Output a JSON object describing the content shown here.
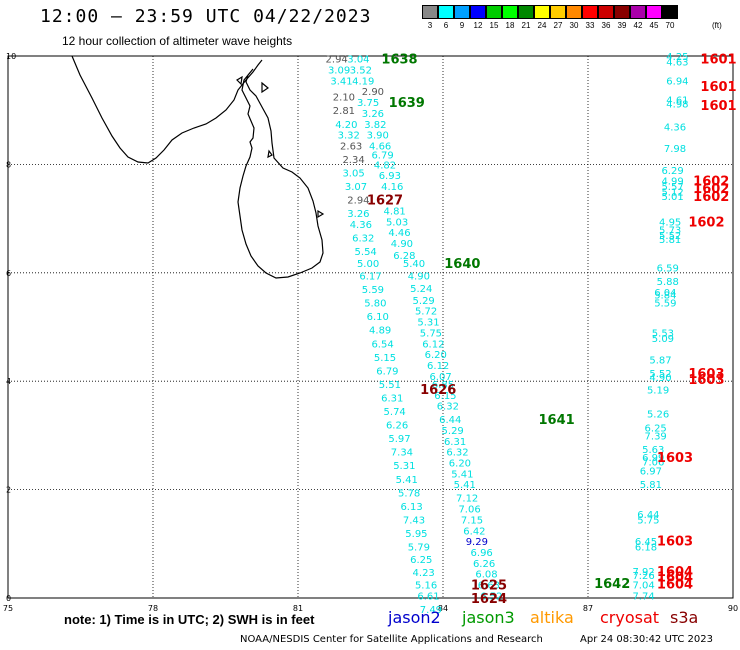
{
  "header": {
    "title": "12:00 – 23:59 UTC 04/22/2023",
    "subtitle": "12 hour collection of altimeter wave heights",
    "legend_unit": "(ft)",
    "legend": [
      {
        "label": "3",
        "color": "#888888"
      },
      {
        "label": "6",
        "color": "#00ffff"
      },
      {
        "label": "9",
        "color": "#00a0ff"
      },
      {
        "label": "12",
        "color": "#0000ff"
      },
      {
        "label": "15",
        "color": "#00cc00"
      },
      {
        "label": "18",
        "color": "#00ff00"
      },
      {
        "label": "21",
        "color": "#008800"
      },
      {
        "label": "24",
        "color": "#ffff00"
      },
      {
        "label": "27",
        "color": "#ffcc00"
      },
      {
        "label": "30",
        "color": "#ff8800"
      },
      {
        "label": "33",
        "color": "#ff0000"
      },
      {
        "label": "36",
        "color": "#cc0000"
      },
      {
        "label": "39",
        "color": "#880000"
      },
      {
        "label": "42",
        "color": "#aa00aa"
      },
      {
        "label": "45",
        "color": "#ff00ff"
      },
      {
        "label": "70",
        "color": "#000000"
      }
    ]
  },
  "map": {
    "lon_ticks": [
      "75",
      "78",
      "81",
      "84",
      "87",
      "90"
    ],
    "lat_ticks": [
      "0",
      "2",
      "4",
      "6",
      "8",
      "10"
    ],
    "colors": {
      "gray": "#555555",
      "cyan": "#00e0e0",
      "blue": "#0000cc",
      "green": "#007700",
      "darkred": "#880000",
      "red": "#ee0000"
    },
    "time_labels": [
      {
        "text": "1638",
        "lon": 83.1,
        "lat": 9.95,
        "c": "green"
      },
      {
        "text": "1639",
        "lon": 83.25,
        "lat": 9.15,
        "c": "green"
      },
      {
        "text": "1627",
        "lon": 82.8,
        "lat": 7.35,
        "c": "darkred"
      },
      {
        "text": "1640",
        "lon": 84.4,
        "lat": 6.18,
        "c": "green"
      },
      {
        "text": "1626",
        "lon": 83.9,
        "lat": 3.86,
        "c": "darkred"
      },
      {
        "text": "1641",
        "lon": 86.35,
        "lat": 3.3,
        "c": "green"
      },
      {
        "text": "1642",
        "lon": 87.5,
        "lat": 0.28,
        "c": "green"
      },
      {
        "text": "1625",
        "lon": 84.95,
        "lat": 0.25,
        "c": "darkred"
      },
      {
        "text": "1624",
        "lon": 84.95,
        "lat": 0.0,
        "c": "darkred"
      },
      {
        "text": "1601",
        "lon": 89.7,
        "lat": 9.95,
        "c": "red"
      },
      {
        "text": "1601",
        "lon": 89.7,
        "lat": 9.45,
        "c": "red"
      },
      {
        "text": "1601",
        "lon": 89.7,
        "lat": 9.1,
        "c": "red"
      },
      {
        "text": "1602",
        "lon": 89.55,
        "lat": 7.7,
        "c": "red"
      },
      {
        "text": "1602",
        "lon": 89.55,
        "lat": 7.56,
        "c": "red"
      },
      {
        "text": "1602",
        "lon": 89.55,
        "lat": 7.42,
        "c": "red"
      },
      {
        "text": "1602",
        "lon": 89.45,
        "lat": 6.95,
        "c": "red"
      },
      {
        "text": "1603",
        "lon": 89.45,
        "lat": 4.15,
        "c": "red"
      },
      {
        "text": "1603",
        "lon": 89.45,
        "lat": 4.04,
        "c": "red"
      },
      {
        "text": "1603",
        "lon": 88.8,
        "lat": 2.6,
        "c": "red"
      },
      {
        "text": "1603",
        "lon": 88.8,
        "lat": 1.06,
        "c": "red"
      },
      {
        "text": "1604",
        "lon": 88.8,
        "lat": 0.5,
        "c": "red"
      },
      {
        "text": "1604",
        "lon": 88.8,
        "lat": 0.4,
        "c": "red"
      },
      {
        "text": "1604",
        "lon": 88.8,
        "lat": 0.27,
        "c": "red"
      }
    ],
    "heights": [
      {
        "text": "2.94",
        "lon": 81.8,
        "lat": 9.95,
        "c": "gray"
      },
      {
        "text": "3.04",
        "lon": 82.25,
        "lat": 9.95,
        "c": "cyan"
      },
      {
        "text": "3.09",
        "lon": 81.85,
        "lat": 9.75,
        "c": "cyan"
      },
      {
        "text": "3.52",
        "lon": 82.3,
        "lat": 9.75,
        "c": "cyan"
      },
      {
        "text": "3.41",
        "lon": 81.9,
        "lat": 9.55,
        "c": "cyan"
      },
      {
        "text": "4.19",
        "lon": 82.35,
        "lat": 9.55,
        "c": "cyan"
      },
      {
        "text": "2.90",
        "lon": 82.55,
        "lat": 9.35,
        "c": "gray"
      },
      {
        "text": "2.10",
        "lon": 81.95,
        "lat": 9.25,
        "c": "gray"
      },
      {
        "text": "3.75",
        "lon": 82.45,
        "lat": 9.15,
        "c": "cyan"
      },
      {
        "text": "2.81",
        "lon": 81.95,
        "lat": 9.0,
        "c": "gray"
      },
      {
        "text": "3.26",
        "lon": 82.55,
        "lat": 8.95,
        "c": "cyan"
      },
      {
        "text": "4.20",
        "lon": 82.0,
        "lat": 8.75,
        "c": "cyan"
      },
      {
        "text": "3.82",
        "lon": 82.6,
        "lat": 8.75,
        "c": "cyan"
      },
      {
        "text": "3.32",
        "lon": 82.05,
        "lat": 8.55,
        "c": "cyan"
      },
      {
        "text": "3.90",
        "lon": 82.65,
        "lat": 8.55,
        "c": "cyan"
      },
      {
        "text": "2.63",
        "lon": 82.1,
        "lat": 8.35,
        "c": "gray"
      },
      {
        "text": "4.66",
        "lon": 82.7,
        "lat": 8.35,
        "c": "cyan"
      },
      {
        "text": "2.34",
        "lon": 82.15,
        "lat": 8.1,
        "c": "gray"
      },
      {
        "text": "6.79",
        "lon": 82.75,
        "lat": 8.18,
        "c": "cyan"
      },
      {
        "text": "4.82",
        "lon": 82.8,
        "lat": 8.0,
        "c": "cyan"
      },
      {
        "text": "3.05",
        "lon": 82.15,
        "lat": 7.85,
        "c": "cyan"
      },
      {
        "text": "6.93",
        "lon": 82.9,
        "lat": 7.8,
        "c": "cyan"
      },
      {
        "text": "3.07",
        "lon": 82.2,
        "lat": 7.6,
        "c": "cyan"
      },
      {
        "text": "4.16",
        "lon": 82.95,
        "lat": 7.6,
        "c": "cyan"
      },
      {
        "text": "2.94",
        "lon": 82.25,
        "lat": 7.35,
        "c": "gray"
      },
      {
        "text": "4.81",
        "lon": 83.0,
        "lat": 7.15,
        "c": "cyan"
      },
      {
        "text": "3.26",
        "lon": 82.25,
        "lat": 7.1,
        "c": "cyan"
      },
      {
        "text": "5.03",
        "lon": 83.05,
        "lat": 6.95,
        "c": "cyan"
      },
      {
        "text": "4.36",
        "lon": 82.3,
        "lat": 6.9,
        "c": "cyan"
      },
      {
        "text": "4.46",
        "lon": 83.1,
        "lat": 6.75,
        "c": "cyan"
      },
      {
        "text": "6.32",
        "lon": 82.35,
        "lat": 6.65,
        "c": "cyan"
      },
      {
        "text": "4.90",
        "lon": 83.15,
        "lat": 6.55,
        "c": "cyan"
      },
      {
        "text": "5.54",
        "lon": 82.4,
        "lat": 6.4,
        "c": "cyan"
      },
      {
        "text": "6.28",
        "lon": 83.2,
        "lat": 6.33,
        "c": "cyan"
      },
      {
        "text": "5.00",
        "lon": 82.45,
        "lat": 6.18,
        "c": "cyan"
      },
      {
        "text": "5.40",
        "lon": 83.4,
        "lat": 6.18,
        "c": "cyan"
      },
      {
        "text": "6.17",
        "lon": 82.5,
        "lat": 5.95,
        "c": "cyan"
      },
      {
        "text": "4.90",
        "lon": 83.5,
        "lat": 5.95,
        "c": "cyan"
      },
      {
        "text": "5.59",
        "lon": 82.55,
        "lat": 5.7,
        "c": "cyan"
      },
      {
        "text": "5.24",
        "lon": 83.55,
        "lat": 5.72,
        "c": "cyan"
      },
      {
        "text": "5.80",
        "lon": 82.6,
        "lat": 5.45,
        "c": "cyan"
      },
      {
        "text": "5.29",
        "lon": 83.6,
        "lat": 5.5,
        "c": "cyan"
      },
      {
        "text": "5.72",
        "lon": 83.65,
        "lat": 5.3,
        "c": "cyan"
      },
      {
        "text": "6.10",
        "lon": 82.65,
        "lat": 5.2,
        "c": "cyan"
      },
      {
        "text": "5.31",
        "lon": 83.7,
        "lat": 5.1,
        "c": "cyan"
      },
      {
        "text": "4.89",
        "lon": 82.7,
        "lat": 4.95,
        "c": "cyan"
      },
      {
        "text": "5.75",
        "lon": 83.75,
        "lat": 4.9,
        "c": "cyan"
      },
      {
        "text": "6.54",
        "lon": 82.75,
        "lat": 4.7,
        "c": "cyan"
      },
      {
        "text": "6.12",
        "lon": 83.8,
        "lat": 4.7,
        "c": "cyan"
      },
      {
        "text": "5.15",
        "lon": 82.8,
        "lat": 4.45,
        "c": "cyan"
      },
      {
        "text": "6.20",
        "lon": 83.85,
        "lat": 4.5,
        "c": "cyan"
      },
      {
        "text": "6.12",
        "lon": 83.9,
        "lat": 4.3,
        "c": "cyan"
      },
      {
        "text": "6.79",
        "lon": 82.85,
        "lat": 4.2,
        "c": "cyan"
      },
      {
        "text": "6.07",
        "lon": 83.95,
        "lat": 4.1,
        "c": "cyan"
      },
      {
        "text": "5.51",
        "lon": 82.9,
        "lat": 3.95,
        "c": "cyan"
      },
      {
        "text": "6.85",
        "lon": 84.0,
        "lat": 3.95,
        "c": "cyan"
      },
      {
        "text": "6.31",
        "lon": 82.95,
        "lat": 3.7,
        "c": "cyan"
      },
      {
        "text": "6.15",
        "lon": 84.05,
        "lat": 3.75,
        "c": "cyan"
      },
      {
        "text": "6.32",
        "lon": 84.1,
        "lat": 3.55,
        "c": "cyan"
      },
      {
        "text": "5.74",
        "lon": 83.0,
        "lat": 3.45,
        "c": "cyan"
      },
      {
        "text": "6.44",
        "lon": 84.15,
        "lat": 3.3,
        "c": "cyan"
      },
      {
        "text": "6.26",
        "lon": 83.05,
        "lat": 3.2,
        "c": "cyan"
      },
      {
        "text": "5.29",
        "lon": 84.2,
        "lat": 3.1,
        "c": "cyan"
      },
      {
        "text": "5.97",
        "lon": 83.1,
        "lat": 2.95,
        "c": "cyan"
      },
      {
        "text": "6.31",
        "lon": 84.25,
        "lat": 2.9,
        "c": "cyan"
      },
      {
        "text": "7.34",
        "lon": 83.15,
        "lat": 2.7,
        "c": "cyan"
      },
      {
        "text": "6.32",
        "lon": 84.3,
        "lat": 2.7,
        "c": "cyan"
      },
      {
        "text": "5.31",
        "lon": 83.2,
        "lat": 2.45,
        "c": "cyan"
      },
      {
        "text": "6.20",
        "lon": 84.35,
        "lat": 2.5,
        "c": "cyan"
      },
      {
        "text": "5.41",
        "lon": 83.25,
        "lat": 2.2,
        "c": "cyan"
      },
      {
        "text": "5.41",
        "lon": 84.4,
        "lat": 2.3,
        "c": "cyan"
      },
      {
        "text": "5.78",
        "lon": 83.3,
        "lat": 1.95,
        "c": "cyan"
      },
      {
        "text": "5.41",
        "lon": 84.45,
        "lat": 2.1,
        "c": "cyan"
      },
      {
        "text": "6.13",
        "lon": 83.35,
        "lat": 1.7,
        "c": "cyan"
      },
      {
        "text": "7.12",
        "lon": 84.5,
        "lat": 1.85,
        "c": "cyan"
      },
      {
        "text": "7.43",
        "lon": 83.4,
        "lat": 1.45,
        "c": "cyan"
      },
      {
        "text": "7.06",
        "lon": 84.55,
        "lat": 1.65,
        "c": "cyan"
      },
      {
        "text": "7.15",
        "lon": 84.6,
        "lat": 1.45,
        "c": "cyan"
      },
      {
        "text": "5.95",
        "lon": 83.45,
        "lat": 1.2,
        "c": "cyan"
      },
      {
        "text": "6.42",
        "lon": 84.65,
        "lat": 1.25,
        "c": "cyan"
      },
      {
        "text": "5.79",
        "lon": 83.5,
        "lat": 0.95,
        "c": "cyan"
      },
      {
        "text": "9.29",
        "lon": 84.7,
        "lat": 1.05,
        "c": "blue"
      },
      {
        "text": "6.25",
        "lon": 83.55,
        "lat": 0.72,
        "c": "cyan"
      },
      {
        "text": "6.96",
        "lon": 84.8,
        "lat": 0.85,
        "c": "cyan"
      },
      {
        "text": "4.23",
        "lon": 83.6,
        "lat": 0.48,
        "c": "cyan"
      },
      {
        "text": "6.26",
        "lon": 84.85,
        "lat": 0.65,
        "c": "cyan"
      },
      {
        "text": "5.16",
        "lon": 83.65,
        "lat": 0.25,
        "c": "cyan"
      },
      {
        "text": "6.08",
        "lon": 84.9,
        "lat": 0.45,
        "c": "cyan"
      },
      {
        "text": "6.61",
        "lon": 83.7,
        "lat": 0.05,
        "c": "cyan"
      },
      {
        "text": "6.63",
        "lon": 84.95,
        "lat": 0.25,
        "c": "cyan"
      },
      {
        "text": "7.49",
        "lon": 83.75,
        "lat": -0.2,
        "c": "cyan"
      },
      {
        "text": "6.52",
        "lon": 85.0,
        "lat": 0.05,
        "c": "cyan"
      },
      {
        "text": "4.25",
        "lon": 88.85,
        "lat": 10.0,
        "c": "cyan"
      },
      {
        "text": "4.63",
        "lon": 88.85,
        "lat": 9.9,
        "c": "cyan"
      },
      {
        "text": "6.94",
        "lon": 88.85,
        "lat": 9.55,
        "c": "cyan"
      },
      {
        "text": "4.61",
        "lon": 88.85,
        "lat": 9.2,
        "c": "cyan"
      },
      {
        "text": "4.98",
        "lon": 88.85,
        "lat": 9.12,
        "c": "cyan"
      },
      {
        "text": "4.36",
        "lon": 88.8,
        "lat": 8.7,
        "c": "cyan"
      },
      {
        "text": "7.98",
        "lon": 88.8,
        "lat": 8.3,
        "c": "cyan"
      },
      {
        "text": "6.29",
        "lon": 88.75,
        "lat": 7.9,
        "c": "cyan"
      },
      {
        "text": "4.99",
        "lon": 88.75,
        "lat": 7.7,
        "c": "cyan"
      },
      {
        "text": "5.57",
        "lon": 88.75,
        "lat": 7.6,
        "c": "cyan"
      },
      {
        "text": "5.12",
        "lon": 88.75,
        "lat": 7.5,
        "c": "cyan"
      },
      {
        "text": "5.01",
        "lon": 88.75,
        "lat": 7.42,
        "c": "cyan"
      },
      {
        "text": "4.95",
        "lon": 88.7,
        "lat": 6.95,
        "c": "cyan"
      },
      {
        "text": "5.73",
        "lon": 88.7,
        "lat": 6.8,
        "c": "cyan"
      },
      {
        "text": "5.52",
        "lon": 88.7,
        "lat": 6.7,
        "c": "cyan"
      },
      {
        "text": "5.81",
        "lon": 88.7,
        "lat": 6.62,
        "c": "cyan"
      },
      {
        "text": "6.59",
        "lon": 88.65,
        "lat": 6.1,
        "c": "cyan"
      },
      {
        "text": "5.88",
        "lon": 88.65,
        "lat": 5.85,
        "c": "cyan"
      },
      {
        "text": "6.04",
        "lon": 88.6,
        "lat": 5.65,
        "c": "cyan"
      },
      {
        "text": "5.84",
        "lon": 88.6,
        "lat": 5.6,
        "c": "cyan"
      },
      {
        "text": "5.59",
        "lon": 88.6,
        "lat": 5.45,
        "c": "cyan"
      },
      {
        "text": "5.53",
        "lon": 88.55,
        "lat": 4.9,
        "c": "cyan"
      },
      {
        "text": "5.09",
        "lon": 88.55,
        "lat": 4.8,
        "c": "cyan"
      },
      {
        "text": "5.87",
        "lon": 88.5,
        "lat": 4.4,
        "c": "cyan"
      },
      {
        "text": "5.52",
        "lon": 88.5,
        "lat": 4.15,
        "c": "cyan"
      },
      {
        "text": "4.90",
        "lon": 88.5,
        "lat": 4.08,
        "c": "cyan"
      },
      {
        "text": "5.19",
        "lon": 88.45,
        "lat": 3.85,
        "c": "cyan"
      },
      {
        "text": "5.26",
        "lon": 88.45,
        "lat": 3.4,
        "c": "cyan"
      },
      {
        "text": "6.25",
        "lon": 88.4,
        "lat": 3.15,
        "c": "cyan"
      },
      {
        "text": "7.39",
        "lon": 88.4,
        "lat": 3.0,
        "c": "cyan"
      },
      {
        "text": "5.63",
        "lon": 88.35,
        "lat": 2.75,
        "c": "cyan"
      },
      {
        "text": "6.99",
        "lon": 88.35,
        "lat": 2.6,
        "c": "cyan"
      },
      {
        "text": "7.06",
        "lon": 88.35,
        "lat": 2.52,
        "c": "cyan"
      },
      {
        "text": "6.97",
        "lon": 88.3,
        "lat": 2.35,
        "c": "cyan"
      },
      {
        "text": "5.81",
        "lon": 88.3,
        "lat": 2.1,
        "c": "cyan"
      },
      {
        "text": "6.44",
        "lon": 88.25,
        "lat": 1.55,
        "c": "cyan"
      },
      {
        "text": "5.75",
        "lon": 88.25,
        "lat": 1.45,
        "c": "cyan"
      },
      {
        "text": "6.45",
        "lon": 88.2,
        "lat": 1.05,
        "c": "cyan"
      },
      {
        "text": "6.18",
        "lon": 88.2,
        "lat": 0.95,
        "c": "cyan"
      },
      {
        "text": "7.92",
        "lon": 88.15,
        "lat": 0.5,
        "c": "cyan"
      },
      {
        "text": "7.26",
        "lon": 88.15,
        "lat": 0.42,
        "c": "cyan"
      },
      {
        "text": "7.04",
        "lon": 88.15,
        "lat": 0.25,
        "c": "cyan"
      },
      {
        "text": "7.74",
        "lon": 88.15,
        "lat": 0.05,
        "c": "cyan"
      }
    ]
  },
  "footer": {
    "note": "note:  1) Time is in UTC;  2) SWH is in feet",
    "satellites": [
      {
        "name": "jason2",
        "color": "#0000cc"
      },
      {
        "name": "jason3",
        "color": "#009900"
      },
      {
        "name": "altika",
        "color": "#ff9900"
      },
      {
        "name": "cryosat",
        "color": "#ee0000"
      },
      {
        "name": "s3a",
        "color": "#880000"
      }
    ],
    "credit": "NOAA/NESDIS Center for Satellite Applications and Research",
    "timestamp": "Apr 24 08:30:42 UTC 2023"
  }
}
